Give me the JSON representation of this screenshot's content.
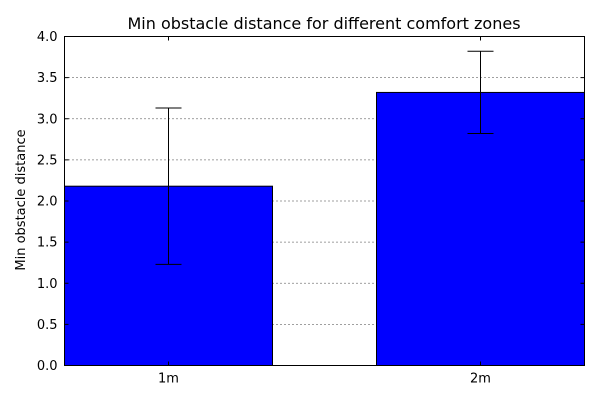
{
  "chart_data": {
    "type": "bar",
    "title": "Min obstacle distance for different comfort zones",
    "xlabel": "",
    "ylabel": "Min obstacle distance",
    "categories": [
      "1m",
      "2m"
    ],
    "values": [
      2.18,
      3.32
    ],
    "errors": [
      0.95,
      0.5
    ],
    "ylim": [
      0,
      4.0
    ],
    "yticks": [
      "0.0",
      "0.5",
      "1.0",
      "1.5",
      "2.0",
      "2.5",
      "3.0",
      "3.5",
      "4.0"
    ],
    "grid": "horizontal-dotted",
    "bar_color": "#0000ff",
    "edge_color": "#000000"
  }
}
